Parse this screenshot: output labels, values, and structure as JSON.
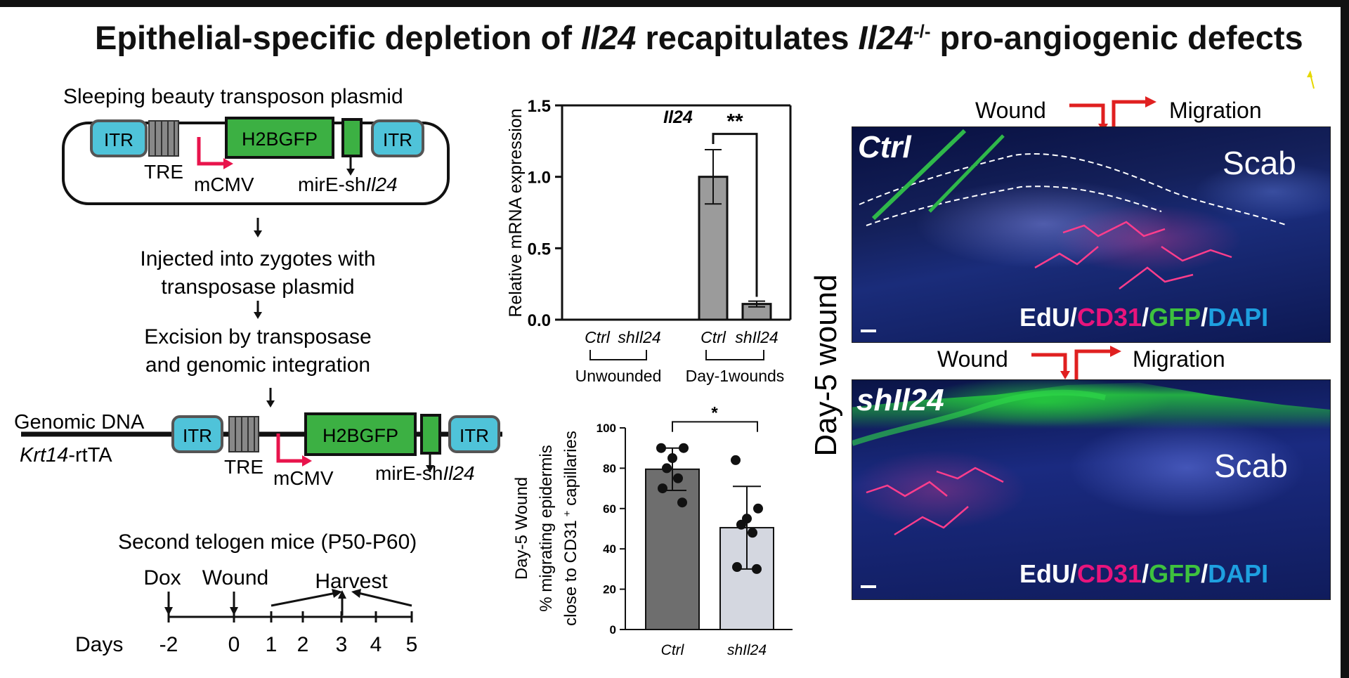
{
  "title": {
    "part1": "Epithelial-specific depletion of ",
    "gene1": "Il24",
    "part2": " recapitulates ",
    "gene2": "Il24",
    "sup": "-/-",
    "part3": " pro-angiogenic defects"
  },
  "schematic": {
    "plasmid_title": "Sleeping beauty transposon plasmid",
    "itr": "ITR",
    "tre": "TRE",
    "h2bgfp": "H2BGFP",
    "mcmv": "mCMV",
    "mire": "mirE-sh",
    "mire_gene": "Il24",
    "step1_line1": "Injected into zygotes with",
    "step1_line2": "transposase plasmid",
    "step2_line1": "Excision by transposase",
    "step2_line2": "and genomic integration",
    "genomic_dna": "Genomic DNA",
    "krt14": "Krt14",
    "rtta": "-rtTA",
    "timeline_title": "Second telogen mice (P50-P60)",
    "timeline_events": [
      "Dox",
      "Wound",
      "Harvest"
    ],
    "days_label": "Days",
    "day_ticks": [
      "-2",
      "0",
      "1",
      "2",
      "3",
      "4",
      "5"
    ]
  },
  "chart_data": [
    {
      "type": "bar",
      "title": "Il24",
      "ylabel": "Relative mRNA expression",
      "ylim": [
        0,
        1.5
      ],
      "yticks": [
        "0.0",
        "0.5",
        "1.0",
        "1.5"
      ],
      "categories": [
        "Ctrl",
        "shIl24",
        "Ctrl",
        "shIl24"
      ],
      "groups": [
        "Unwounded",
        "Day-1wounds"
      ],
      "values": [
        0,
        0,
        1.0,
        0.11
      ],
      "errors": [
        0,
        0,
        0.19,
        0.02
      ],
      "significance": "**"
    },
    {
      "type": "bar",
      "ylabel_lines": [
        "Day-5 Wound",
        "% migrating epidermis",
        "close to CD31",
        "capillaries"
      ],
      "ylabel_sup": "+",
      "ylim": [
        0,
        100
      ],
      "yticks": [
        "0",
        "20",
        "40",
        "60",
        "80",
        "100"
      ],
      "categories": [
        "Ctrl",
        "shIl24"
      ],
      "values": [
        79.5,
        50.5
      ],
      "errors": [
        10.5,
        20.5
      ],
      "points": [
        [
          90,
          90,
          85,
          80,
          75,
          70,
          63
        ],
        [
          84,
          60,
          55,
          52,
          48,
          31,
          30
        ]
      ],
      "bar_colors": [
        "#6e6e6e",
        "#d4d7e0"
      ],
      "significance": "*"
    }
  ],
  "micrographs": {
    "side_label": "Day-5 wound",
    "panels": [
      {
        "condition": "Ctrl",
        "wound": "Wound",
        "migration": "Migration",
        "scab": "Scab",
        "stains": [
          "EdU",
          "CD31",
          "GFP",
          "DAPI"
        ]
      },
      {
        "condition": "shIl24",
        "wound": "Wound",
        "migration": "Migration",
        "scab": "Scab",
        "stains": [
          "EdU",
          "CD31",
          "GFP",
          "DAPI"
        ]
      }
    ],
    "stain_colors": [
      "#ffffff",
      "#e8147c",
      "#3ec23e",
      "#1ea0e0"
    ]
  },
  "colors": {
    "itr": "#4fc3d9",
    "gfp_box": "#3cb043",
    "arrow": "#e8144c",
    "wound_arrow": "#e02020"
  }
}
